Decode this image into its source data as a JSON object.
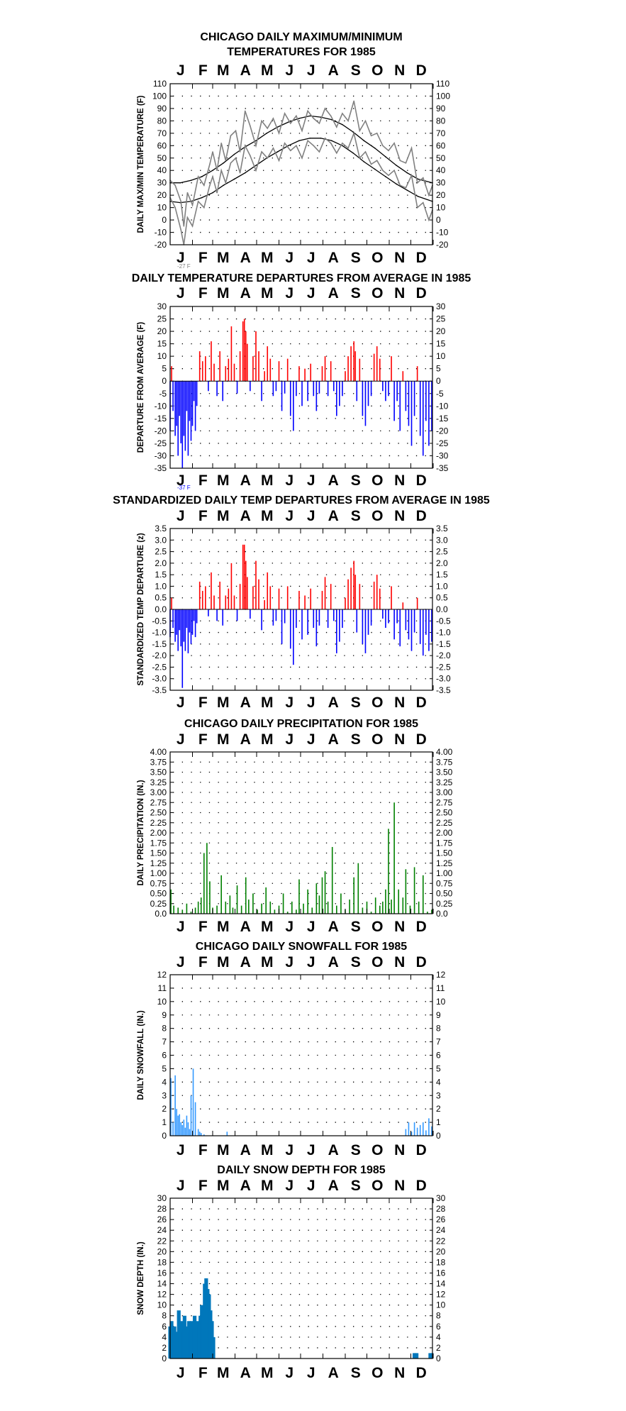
{
  "chart_data": [
    {
      "type": "line",
      "title": "CHICAGO DAILY MAXIMUM/MINIMUM",
      "subtitle": "TEMPERATURES FOR 1985",
      "ylabel": "DAILY MAX/MIN TEMPERATURE (F)",
      "months": [
        "J",
        "F",
        "M",
        "A",
        "M",
        "J",
        "J",
        "A",
        "S",
        "O",
        "N",
        "D"
      ],
      "ylim": [
        -20,
        110
      ],
      "yticks": [
        "110",
        "100",
        "90",
        "80",
        "70",
        "60",
        "50",
        "40",
        "30",
        "20",
        "10",
        "0",
        "-10",
        "-20"
      ],
      "annotation": "-27 F",
      "grid": true,
      "colors": {
        "daily": "#808080",
        "normal": "#000000"
      },
      "series": [
        {
          "kind": "normal_max",
          "x": [
            1,
            15,
            30,
            45,
            60,
            75,
            90,
            105,
            120,
            135,
            150,
            165,
            180,
            195,
            210,
            225,
            240,
            255,
            270,
            285,
            300,
            315,
            330,
            345,
            365
          ],
          "values": [
            30,
            30,
            32,
            35,
            40,
            46,
            53,
            59,
            64,
            70,
            75,
            79,
            82,
            84,
            83,
            81,
            77,
            71,
            64,
            58,
            51,
            44,
            38,
            33,
            30
          ]
        },
        {
          "kind": "normal_min",
          "x": [
            1,
            15,
            30,
            45,
            60,
            75,
            90,
            105,
            120,
            135,
            150,
            165,
            180,
            195,
            210,
            225,
            240,
            255,
            270,
            285,
            300,
            315,
            330,
            345,
            365
          ],
          "values": [
            15,
            14,
            15,
            18,
            22,
            28,
            33,
            38,
            44,
            50,
            55,
            60,
            64,
            66,
            66,
            64,
            60,
            54,
            47,
            41,
            35,
            29,
            24,
            19,
            15
          ]
        },
        {
          "kind": "daily_max",
          "x": [
            1,
            8,
            16,
            20,
            25,
            32,
            40,
            48,
            56,
            60,
            66,
            72,
            78,
            85,
            92,
            98,
            105,
            112,
            120,
            128,
            136,
            144,
            152,
            160,
            168,
            176,
            184,
            192,
            200,
            208,
            216,
            224,
            232,
            240,
            248,
            256,
            264,
            272,
            280,
            288,
            296,
            304,
            312,
            320,
            328,
            336,
            344,
            352,
            360,
            365
          ],
          "values": [
            32,
            28,
            15,
            -5,
            22,
            12,
            35,
            28,
            45,
            55,
            40,
            62,
            48,
            68,
            72,
            55,
            88,
            76,
            60,
            80,
            74,
            82,
            70,
            86,
            78,
            84,
            72,
            88,
            82,
            78,
            90,
            84,
            75,
            86,
            80,
            96,
            72,
            80,
            68,
            70,
            60,
            56,
            62,
            48,
            46,
            58,
            30,
            34,
            20,
            28
          ]
        },
        {
          "kind": "daily_min",
          "x": [
            1,
            8,
            16,
            20,
            25,
            32,
            40,
            48,
            56,
            60,
            66,
            72,
            78,
            85,
            92,
            98,
            105,
            112,
            120,
            128,
            136,
            144,
            152,
            160,
            168,
            176,
            184,
            192,
            200,
            208,
            216,
            224,
            232,
            240,
            248,
            256,
            264,
            272,
            280,
            288,
            296,
            304,
            312,
            320,
            328,
            336,
            344,
            352,
            360,
            365
          ],
          "values": [
            18,
            10,
            -8,
            -27,
            2,
            -5,
            15,
            10,
            28,
            35,
            22,
            40,
            30,
            46,
            50,
            38,
            60,
            52,
            40,
            55,
            50,
            58,
            48,
            62,
            56,
            60,
            50,
            64,
            60,
            55,
            66,
            62,
            54,
            62,
            58,
            70,
            50,
            55,
            45,
            48,
            40,
            36,
            40,
            28,
            26,
            36,
            10,
            14,
            0,
            8
          ]
        }
      ]
    },
    {
      "type": "bar",
      "title": "DAILY TEMPERATURE DEPARTURES FROM AVERAGE IN 1985",
      "ylabel": "DEPARTURE FROM AVERAGE (F)",
      "months": [
        "J",
        "F",
        "M",
        "A",
        "M",
        "J",
        "J",
        "A",
        "S",
        "O",
        "N",
        "D"
      ],
      "ylim": [
        -35,
        30
      ],
      "yticks": [
        "30",
        "25",
        "20",
        "15",
        "10",
        "5",
        "0",
        "-5",
        "-10",
        "-15",
        "-20",
        "-25",
        "-30",
        "-35"
      ],
      "annotation": "-37 F",
      "grid": true,
      "colors": {
        "positive": "#ff0000",
        "negative": "#0000ff"
      },
      "x": [
        1,
        3,
        5,
        8,
        10,
        12,
        14,
        16,
        18,
        20,
        22,
        24,
        26,
        28,
        30,
        32,
        34,
        36,
        38,
        42,
        46,
        50,
        54,
        58,
        62,
        66,
        70,
        74,
        78,
        82,
        86,
        90,
        94,
        98,
        102,
        104,
        106,
        108,
        112,
        116,
        120,
        124,
        128,
        132,
        136,
        140,
        144,
        148,
        152,
        156,
        160,
        164,
        168,
        172,
        176,
        180,
        184,
        188,
        192,
        196,
        200,
        204,
        208,
        212,
        216,
        220,
        224,
        228,
        232,
        236,
        240,
        244,
        248,
        252,
        256,
        258,
        260,
        264,
        268,
        272,
        276,
        280,
        284,
        288,
        292,
        296,
        300,
        304,
        308,
        312,
        316,
        320,
        324,
        328,
        332,
        336,
        340,
        344,
        348,
        352,
        356,
        360,
        364
      ],
      "values": [
        -20,
        6,
        -12,
        -22,
        -18,
        -30,
        -14,
        -25,
        -37,
        -22,
        -28,
        -12,
        -30,
        -16,
        -24,
        -18,
        -8,
        -20,
        -10,
        12,
        8,
        10,
        -4,
        16,
        7,
        -6,
        12,
        -8,
        6,
        9,
        22,
        7,
        -5,
        12,
        24,
        25,
        20,
        15,
        -4,
        10,
        20,
        12,
        -8,
        4,
        14,
        9,
        -6,
        -4,
        8,
        -12,
        -5,
        9,
        -14,
        -20,
        -6,
        6,
        -10,
        5,
        -8,
        7,
        -6,
        -12,
        -5,
        6,
        10,
        -6,
        8,
        -4,
        -14,
        -10,
        -6,
        4,
        10,
        14,
        16,
        12,
        -8,
        9,
        -14,
        -18,
        -10,
        -6,
        11,
        14,
        9,
        -4,
        -8,
        -6,
        10,
        -16,
        -8,
        -20,
        4,
        -12,
        -18,
        -26,
        -14,
        6,
        -22,
        -30,
        -16,
        -26,
        -20
      ]
    },
    {
      "type": "bar",
      "title": "STANDARDIZED DAILY TEMP DEPARTURES FROM AVERAGE IN 1985",
      "ylabel": "STANDARDIZED TEMP DEPARTURE (z)",
      "months": [
        "J",
        "F",
        "M",
        "A",
        "M",
        "J",
        "J",
        "A",
        "S",
        "O",
        "N",
        "D"
      ],
      "ylim": [
        -3.5,
        3.5
      ],
      "yticks": [
        "3.5",
        "3.0",
        "2.5",
        "2.0",
        "1.5",
        "1.0",
        "0.5",
        "0.0",
        "-0.5",
        "-1.0",
        "-1.5",
        "-2.0",
        "-2.5",
        "-3.0",
        "-3.5"
      ],
      "grid": true,
      "colors": {
        "positive": "#ff0000",
        "negative": "#0000ff"
      },
      "x": [
        1,
        3,
        5,
        8,
        10,
        12,
        14,
        16,
        18,
        20,
        22,
        24,
        26,
        28,
        30,
        32,
        34,
        36,
        38,
        42,
        46,
        50,
        54,
        58,
        62,
        66,
        70,
        74,
        78,
        82,
        86,
        90,
        94,
        98,
        102,
        104,
        106,
        108,
        112,
        116,
        120,
        124,
        128,
        132,
        136,
        140,
        144,
        148,
        152,
        156,
        160,
        164,
        168,
        172,
        176,
        180,
        184,
        188,
        192,
        196,
        200,
        204,
        208,
        212,
        216,
        220,
        224,
        228,
        232,
        236,
        240,
        244,
        248,
        252,
        256,
        258,
        260,
        264,
        268,
        272,
        276,
        280,
        284,
        288,
        292,
        296,
        300,
        304,
        308,
        312,
        316,
        320,
        324,
        328,
        332,
        336,
        340,
        344,
        348,
        352,
        356,
        360,
        364
      ],
      "values": [
        -1.2,
        0.5,
        -0.8,
        -1.4,
        -1.1,
        -1.8,
        -0.9,
        -1.6,
        -3.4,
        -1.4,
        -1.8,
        -0.8,
        -1.9,
        -1.0,
        -1.5,
        -1.1,
        -0.5,
        -1.2,
        -0.6,
        1.2,
        0.8,
        1.0,
        -0.3,
        1.6,
        0.6,
        -0.5,
        1.2,
        -0.7,
        0.6,
        0.9,
        2.0,
        0.6,
        -0.5,
        1.1,
        2.8,
        2.8,
        2.1,
        1.4,
        -0.4,
        1.0,
        2.1,
        1.3,
        -0.9,
        0.4,
        1.6,
        1.0,
        -0.7,
        -0.5,
        0.9,
        -1.5,
        -0.6,
        1.0,
        -1.7,
        -2.4,
        -0.8,
        0.8,
        -1.3,
        0.6,
        -1.1,
        0.9,
        -0.8,
        -1.6,
        -0.7,
        0.8,
        1.4,
        -0.8,
        1.1,
        -0.5,
        -1.9,
        -1.4,
        -0.8,
        0.5,
        1.3,
        1.8,
        2.1,
        1.5,
        -1.0,
        1.1,
        -1.5,
        -1.9,
        -1.1,
        -0.7,
        1.2,
        1.5,
        0.9,
        -0.4,
        -0.8,
        -0.6,
        1.0,
        -1.3,
        -0.6,
        -1.6,
        0.3,
        -0.9,
        -1.3,
        -1.8,
        -1.0,
        0.5,
        -1.5,
        -2.0,
        -1.1,
        -1.8,
        -1.4
      ]
    },
    {
      "type": "bar",
      "title": "CHICAGO DAILY PRECIPITATION FOR 1985",
      "ylabel": "DAILY PRECIPITATION (IN.)",
      "months": [
        "J",
        "F",
        "M",
        "A",
        "M",
        "J",
        "J",
        "A",
        "S",
        "O",
        "N",
        "D"
      ],
      "ylim": [
        0,
        4
      ],
      "yticks": [
        "4.00",
        "3.75",
        "3.50",
        "3.25",
        "3.00",
        "2.75",
        "2.50",
        "2.25",
        "2.00",
        "1.75",
        "1.50",
        "1.25",
        "1.00",
        "0.75",
        "0.50",
        "0.25",
        "0.0"
      ],
      "grid": true,
      "colors": {
        "bars": "#008000"
      },
      "x": [
        2,
        6,
        12,
        18,
        24,
        30,
        36,
        40,
        44,
        48,
        52,
        56,
        60,
        66,
        72,
        78,
        84,
        88,
        94,
        100,
        106,
        110,
        116,
        122,
        128,
        134,
        140,
        146,
        152,
        158,
        164,
        170,
        176,
        180,
        186,
        192,
        198,
        204,
        208,
        212,
        216,
        220,
        226,
        232,
        238,
        244,
        250,
        256,
        262,
        268,
        274,
        280,
        286,
        292,
        296,
        300,
        304,
        308,
        312,
        318,
        324,
        328,
        334,
        340,
        346,
        352,
        358,
        364
      ],
      "values": [
        0.6,
        0.2,
        0.15,
        0.1,
        0.25,
        0.05,
        0.15,
        0.3,
        0.4,
        1.5,
        1.75,
        0.8,
        0.15,
        0.2,
        0.95,
        0.3,
        0.45,
        0.15,
        0.7,
        0.2,
        0.9,
        0.35,
        0.5,
        0.1,
        0.25,
        0.65,
        0.3,
        0.1,
        0.2,
        0.5,
        0.05,
        0.3,
        0.1,
        0.85,
        0.25,
        0.6,
        0.15,
        0.75,
        0.45,
        0.9,
        1.05,
        0.3,
        1.65,
        0.2,
        0.5,
        0.1,
        0.35,
        0.9,
        1.25,
        0.15,
        0.3,
        0.05,
        0.4,
        0.2,
        0.3,
        0.6,
        2.1,
        0.35,
        2.75,
        0.6,
        0.4,
        1.1,
        0.2,
        1.15,
        0.3,
        0.95,
        0.05,
        0.1
      ]
    },
    {
      "type": "bar",
      "title": "CHICAGO DAILY SNOWFALL FOR 1985",
      "ylabel": "DAILY SNOWFALL (IN.)",
      "months": [
        "J",
        "F",
        "M",
        "A",
        "M",
        "J",
        "J",
        "A",
        "S",
        "O",
        "N",
        "D"
      ],
      "ylim": [
        0,
        12
      ],
      "yticks": [
        "12",
        "11",
        "10",
        "9",
        "8",
        "7",
        "6",
        "5",
        "4",
        "3",
        "2",
        "1",
        "0"
      ],
      "grid": true,
      "colors": {
        "bars": "#3399ff"
      },
      "x": [
        2,
        5,
        8,
        10,
        12,
        14,
        16,
        18,
        20,
        22,
        24,
        26,
        28,
        30,
        33,
        36,
        40,
        42,
        44,
        48,
        80,
        328,
        332,
        336,
        340,
        344,
        348,
        352,
        356,
        360,
        364
      ],
      "values": [
        4.3,
        1.0,
        4.5,
        2.0,
        1.5,
        1.6,
        1.0,
        0.8,
        1.2,
        0.6,
        1.5,
        1.0,
        0.5,
        3.0,
        5.0,
        2.5,
        0.5,
        0.3,
        0.2,
        0.1,
        0.3,
        0.5,
        1.0,
        0.3,
        1.0,
        0.6,
        0.8,
        1.0,
        0.4,
        1.3,
        0.7
      ]
    },
    {
      "type": "area",
      "title": "DAILY SNOW DEPTH FOR 1985",
      "ylabel": "SNOW DEPTH (IN.)",
      "months": [
        "J",
        "F",
        "M",
        "A",
        "M",
        "J",
        "J",
        "A",
        "S",
        "O",
        "N",
        "D"
      ],
      "ylim": [
        0,
        30
      ],
      "yticks": [
        "30",
        "28",
        "26",
        "24",
        "22",
        "20",
        "18",
        "16",
        "14",
        "12",
        "10",
        "8",
        "6",
        "4",
        "2",
        "0"
      ],
      "grid": true,
      "colors": {
        "bars": "#0077bb"
      },
      "x": [
        1,
        3,
        5,
        7,
        9,
        11,
        13,
        15,
        17,
        19,
        21,
        23,
        25,
        27,
        29,
        31,
        33,
        35,
        37,
        39,
        41,
        43,
        45,
        47,
        49,
        51,
        53,
        55,
        57,
        59,
        61,
        340,
        341,
        342,
        343,
        362,
        363,
        364
      ],
      "values": [
        6,
        7,
        5,
        6,
        4,
        5,
        9,
        6,
        7,
        5,
        8,
        6,
        4,
        7,
        5,
        7,
        6,
        8,
        5,
        7,
        6,
        8,
        10,
        9,
        14,
        15,
        13,
        12,
        9,
        7,
        4,
        1,
        1,
        1,
        1,
        1,
        1,
        1
      ]
    }
  ]
}
